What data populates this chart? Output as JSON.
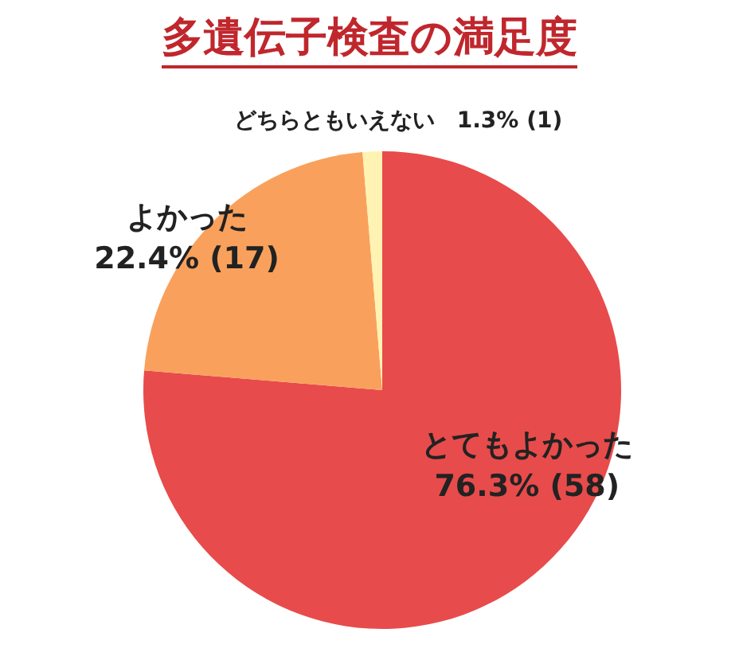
{
  "chart_data": {
    "type": "pie",
    "title": "多遺伝子検査の満足度",
    "categories": [
      "とてもよかった",
      "よかった",
      "どちらともいえない"
    ],
    "values": [
      58,
      17,
      1
    ],
    "value_labels": [
      "76.3% (58)",
      "22.4% (17)",
      "1.3% (1)"
    ],
    "colors": [
      "#e84b4b",
      "#f9a15c",
      "#fff3b3"
    ]
  }
}
